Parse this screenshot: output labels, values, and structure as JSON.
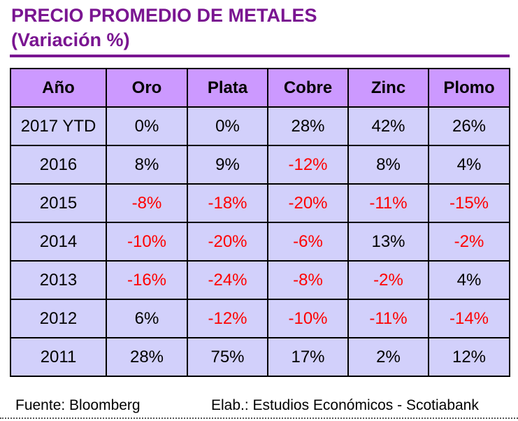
{
  "header": {
    "title": "PRECIO PROMEDIO DE METALES",
    "subtitle": "(Variación %)"
  },
  "table": {
    "columns": [
      "Año",
      "Oro",
      "Plata",
      "Cobre",
      "Zinc",
      "Plomo"
    ],
    "rows": [
      [
        "2017 YTD",
        "0%",
        "0%",
        "28%",
        "42%",
        "26%"
      ],
      [
        "2016",
        "8%",
        "9%",
        "-12%",
        "8%",
        "4%"
      ],
      [
        "2015",
        "-8%",
        "-18%",
        "-20%",
        "-11%",
        "-15%"
      ],
      [
        "2014",
        "-10%",
        "-20%",
        "-6%",
        "13%",
        "-2%"
      ],
      [
        "2013",
        "-16%",
        "-24%",
        "-8%",
        "-2%",
        "4%"
      ],
      [
        "2012",
        "6%",
        "-12%",
        "-10%",
        "-11%",
        "-14%"
      ],
      [
        "2011",
        "28%",
        "75%",
        "17%",
        "2%",
        "12%"
      ]
    ]
  },
  "footer": {
    "source": "Fuente: Bloomberg",
    "credit": "Elab.: Estudios Económicos - Scotiabank"
  }
}
